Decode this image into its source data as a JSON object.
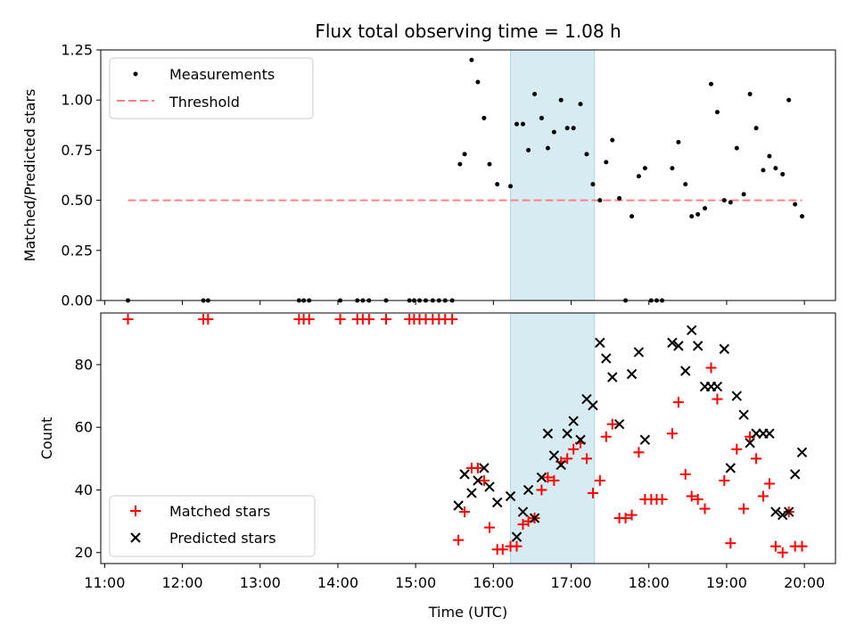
{
  "chart_data": [
    {
      "type": "scatter",
      "title": "Flux total observing time = 1.08 h",
      "xlabel": "",
      "ylabel": "Matched/Predicted stars",
      "xlim": [
        10.95,
        20.4
      ],
      "ylim": [
        0.0,
        1.25
      ],
      "yticks": [
        "0.00",
        "0.25",
        "0.50",
        "0.75",
        "1.00",
        "1.25"
      ],
      "xticks": [
        11,
        12,
        13,
        14,
        15,
        16,
        17,
        18,
        19,
        20
      ],
      "legend_position": "top-left",
      "legend": [
        "Measurements",
        "Threshold"
      ],
      "highlight_span": [
        16.22,
        17.3
      ],
      "threshold": {
        "name": "Threshold",
        "y": 0.5,
        "x_range": [
          11.3,
          19.97
        ],
        "color": "#ff8080"
      },
      "series": [
        {
          "name": "Measurements",
          "color": "#000000",
          "points": [
            [
              11.3,
              0
            ],
            [
              12.27,
              0
            ],
            [
              12.33,
              0
            ],
            [
              13.5,
              0
            ],
            [
              13.56,
              0
            ],
            [
              13.63,
              0
            ],
            [
              14.03,
              0
            ],
            [
              14.25,
              0
            ],
            [
              14.32,
              0
            ],
            [
              14.4,
              0
            ],
            [
              14.62,
              0
            ],
            [
              14.92,
              0
            ],
            [
              14.98,
              0
            ],
            [
              15.05,
              0
            ],
            [
              15.13,
              0
            ],
            [
              15.22,
              0
            ],
            [
              15.3,
              0
            ],
            [
              15.38,
              0
            ],
            [
              15.47,
              0
            ],
            [
              15.57,
              0.68
            ],
            [
              15.63,
              0.73
            ],
            [
              15.72,
              1.2
            ],
            [
              15.8,
              1.09
            ],
            [
              15.88,
              0.91
            ],
            [
              15.95,
              0.68
            ],
            [
              16.05,
              0.58
            ],
            [
              16.22,
              0.57
            ],
            [
              16.3,
              0.88
            ],
            [
              16.38,
              0.88
            ],
            [
              16.45,
              0.75
            ],
            [
              16.53,
              1.03
            ],
            [
              16.62,
              0.91
            ],
            [
              16.7,
              0.76
            ],
            [
              16.78,
              0.84
            ],
            [
              16.87,
              1.0
            ],
            [
              16.95,
              0.86
            ],
            [
              17.03,
              0.86
            ],
            [
              17.12,
              0.98
            ],
            [
              17.2,
              0.73
            ],
            [
              17.28,
              0.58
            ],
            [
              17.37,
              0.5
            ],
            [
              17.45,
              0.69
            ],
            [
              17.53,
              0.8
            ],
            [
              17.62,
              0.51
            ],
            [
              17.7,
              0
            ],
            [
              17.78,
              0.42
            ],
            [
              17.87,
              0.62
            ],
            [
              17.95,
              0.66
            ],
            [
              18.03,
              0
            ],
            [
              18.1,
              0
            ],
            [
              18.17,
              0
            ],
            [
              18.3,
              0.66
            ],
            [
              18.38,
              0.79
            ],
            [
              18.47,
              0.58
            ],
            [
              18.55,
              0.42
            ],
            [
              18.63,
              0.43
            ],
            [
              18.72,
              0.46
            ],
            [
              18.8,
              1.08
            ],
            [
              18.88,
              0.94
            ],
            [
              18.97,
              0.5
            ],
            [
              19.05,
              0.49
            ],
            [
              19.13,
              0.76
            ],
            [
              19.22,
              0.53
            ],
            [
              19.3,
              1.03
            ],
            [
              19.38,
              0.86
            ],
            [
              19.47,
              0.65
            ],
            [
              19.55,
              0.72
            ],
            [
              19.63,
              0.66
            ],
            [
              19.72,
              0.63
            ],
            [
              19.8,
              1.0
            ],
            [
              19.88,
              0.48
            ],
            [
              19.97,
              0.42
            ]
          ]
        }
      ]
    },
    {
      "type": "scatter",
      "title": "",
      "xlabel": "Time (UTC)",
      "ylabel": "Count",
      "xlim": [
        10.95,
        20.4
      ],
      "ylim": [
        16.5,
        96.5
      ],
      "yticks": [
        "20",
        "40",
        "60",
        "80"
      ],
      "ytick_values": [
        20,
        40,
        60,
        80
      ],
      "xticks": [
        11,
        12,
        13,
        14,
        15,
        16,
        17,
        18,
        19,
        20
      ],
      "xtick_labels": [
        "11:00",
        "12:00",
        "13:00",
        "14:00",
        "15:00",
        "16:00",
        "17:00",
        "18:00",
        "19:00",
        "20:00"
      ],
      "legend_position": "bottom-left",
      "legend": [
        "Matched stars",
        "Predicted stars"
      ],
      "highlight_span": [
        16.22,
        17.3
      ],
      "series": [
        {
          "name": "Matched stars",
          "marker": "plus",
          "color": "#ff0000",
          "points": [
            [
              11.3,
              94.5
            ],
            [
              12.27,
              94.5
            ],
            [
              12.33,
              94.5
            ],
            [
              13.5,
              94.5
            ],
            [
              13.56,
              94.5
            ],
            [
              13.63,
              94.5
            ],
            [
              14.03,
              94.5
            ],
            [
              14.25,
              94.5
            ],
            [
              14.32,
              94.5
            ],
            [
              14.4,
              94.5
            ],
            [
              14.62,
              94.5
            ],
            [
              14.92,
              94.5
            ],
            [
              14.98,
              94.5
            ],
            [
              15.05,
              94.5
            ],
            [
              15.13,
              94.5
            ],
            [
              15.22,
              94.5
            ],
            [
              15.3,
              94.5
            ],
            [
              15.38,
              94.5
            ],
            [
              15.47,
              94.5
            ],
            [
              15.55,
              24
            ],
            [
              15.63,
              33
            ],
            [
              15.72,
              47
            ],
            [
              15.8,
              47
            ],
            [
              15.88,
              43
            ],
            [
              15.95,
              28
            ],
            [
              16.05,
              21
            ],
            [
              16.12,
              21
            ],
            [
              16.22,
              22
            ],
            [
              16.3,
              22
            ],
            [
              16.38,
              29
            ],
            [
              16.45,
              30
            ],
            [
              16.53,
              31
            ],
            [
              16.62,
              40
            ],
            [
              16.7,
              44
            ],
            [
              16.78,
              43
            ],
            [
              16.87,
              49
            ],
            [
              16.95,
              50
            ],
            [
              17.03,
              53
            ],
            [
              17.12,
              55
            ],
            [
              17.2,
              50
            ],
            [
              17.28,
              39
            ],
            [
              17.37,
              43
            ],
            [
              17.45,
              57
            ],
            [
              17.53,
              61
            ],
            [
              17.62,
              31
            ],
            [
              17.7,
              31
            ],
            [
              17.78,
              32
            ],
            [
              17.87,
              52
            ],
            [
              17.95,
              37
            ],
            [
              18.03,
              37
            ],
            [
              18.1,
              37
            ],
            [
              18.17,
              37
            ],
            [
              18.3,
              58
            ],
            [
              18.38,
              68
            ],
            [
              18.47,
              45
            ],
            [
              18.55,
              38
            ],
            [
              18.63,
              37
            ],
            [
              18.72,
              34
            ],
            [
              18.8,
              79
            ],
            [
              18.88,
              69
            ],
            [
              18.97,
              43
            ],
            [
              19.05,
              23
            ],
            [
              19.13,
              53
            ],
            [
              19.22,
              34
            ],
            [
              19.3,
              57
            ],
            [
              19.38,
              50
            ],
            [
              19.47,
              38
            ],
            [
              19.55,
              42
            ],
            [
              19.63,
              22
            ],
            [
              19.72,
              20
            ],
            [
              19.8,
              33
            ],
            [
              19.88,
              22
            ],
            [
              19.97,
              22
            ]
          ]
        },
        {
          "name": "Predicted stars",
          "marker": "x",
          "color": "#000000",
          "points": [
            [
              15.55,
              35
            ],
            [
              15.63,
              45
            ],
            [
              15.72,
              39
            ],
            [
              15.8,
              43
            ],
            [
              15.88,
              47
            ],
            [
              15.95,
              41
            ],
            [
              16.05,
              36
            ],
            [
              16.22,
              38
            ],
            [
              16.3,
              25
            ],
            [
              16.38,
              33
            ],
            [
              16.45,
              40
            ],
            [
              16.53,
              31
            ],
            [
              16.62,
              44
            ],
            [
              16.7,
              58
            ],
            [
              16.78,
              51
            ],
            [
              16.87,
              48
            ],
            [
              16.95,
              58
            ],
            [
              17.03,
              62
            ],
            [
              17.12,
              56
            ],
            [
              17.2,
              69
            ],
            [
              17.28,
              67
            ],
            [
              17.37,
              87
            ],
            [
              17.45,
              82
            ],
            [
              17.53,
              76
            ],
            [
              17.62,
              61
            ],
            [
              17.78,
              77
            ],
            [
              17.87,
              84
            ],
            [
              17.95,
              56
            ],
            [
              18.3,
              87
            ],
            [
              18.38,
              86
            ],
            [
              18.47,
              78
            ],
            [
              18.55,
              91
            ],
            [
              18.63,
              86
            ],
            [
              18.72,
              73
            ],
            [
              18.8,
              73
            ],
            [
              18.88,
              73
            ],
            [
              18.97,
              85
            ],
            [
              19.05,
              47
            ],
            [
              19.13,
              70
            ],
            [
              19.22,
              64
            ],
            [
              19.3,
              55
            ],
            [
              19.38,
              58
            ],
            [
              19.47,
              58
            ],
            [
              19.55,
              58
            ],
            [
              19.63,
              33
            ],
            [
              19.72,
              32
            ],
            [
              19.8,
              33
            ],
            [
              19.88,
              45
            ],
            [
              19.97,
              52
            ]
          ]
        }
      ]
    }
  ]
}
